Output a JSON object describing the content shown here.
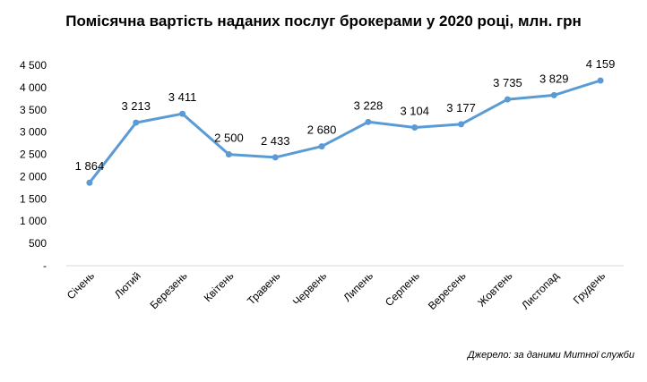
{
  "chart_data": {
    "type": "line",
    "title": "Помісячна вартість наданих послуг брокерами у 2020 році, млн. грн",
    "categories": [
      "Січень",
      "Лютий",
      "Березень",
      "Квітень",
      "Травень",
      "Червень",
      "Липень",
      "Серпень",
      "Вересень",
      "Жовтень",
      "Листопад",
      "Грудень"
    ],
    "values": [
      1864,
      3213,
      3411,
      2500,
      2433,
      2680,
      3228,
      3104,
      3177,
      3735,
      3829,
      4159
    ],
    "data_labels": [
      "1 864",
      "3 213",
      "3 411",
      "2 500",
      "2 433",
      "2 680",
      "3 228",
      "3 104",
      "3 177",
      "3 735",
      "3 829",
      "4 159"
    ],
    "y_ticks": [
      0,
      500,
      1000,
      1500,
      2000,
      2500,
      3000,
      3500,
      4000,
      4500
    ],
    "y_tick_labels": [
      "-",
      "500",
      "1 000",
      "1 500",
      "2 000",
      "2 500",
      "3 000",
      "3 500",
      "4 000",
      "4 500"
    ],
    "ylim": [
      0,
      4500
    ],
    "xlabel": "",
    "ylabel": "",
    "grid": false,
    "legend": "none",
    "line_color": "#5B9BD5",
    "source": "Джерело: за даними Митної служби"
  }
}
